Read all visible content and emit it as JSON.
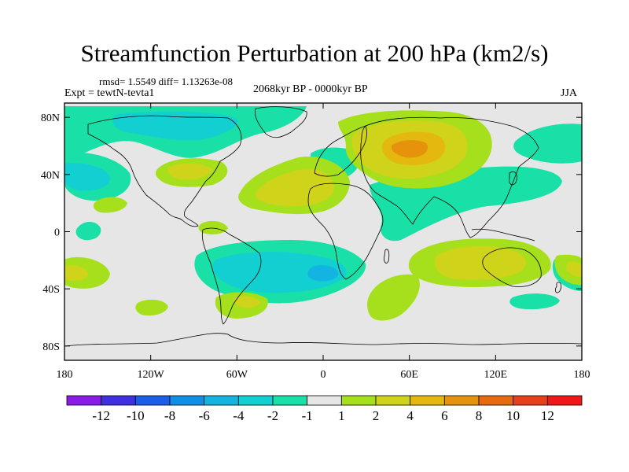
{
  "title": "Streamfunction Perturbation at 200 hPa (km2/s)",
  "stats": "rmsd= 1.5549 diff= 1.13263e-08",
  "experiment": "Expt = tewtN-tevta1",
  "period": "2068kyr BP - 0000kyr BP",
  "season": "JJA",
  "axes": {
    "lat_labels": [
      "80N",
      "40N",
      "0",
      "40S",
      "80S"
    ],
    "lat_values": [
      80,
      40,
      0,
      -40,
      -80
    ],
    "lon_labels": [
      "180",
      "120W",
      "60W",
      "0",
      "60E",
      "120E",
      "180"
    ],
    "lon_values": [
      -180,
      -120,
      -60,
      0,
      60,
      120,
      180
    ],
    "lon_range": [
      -180,
      180
    ],
    "lat_range": [
      -90,
      90
    ]
  },
  "colorbar": {
    "labels": [
      "-12",
      "-10",
      "-8",
      "-6",
      "-4",
      "-2",
      "-1",
      "1",
      "2",
      "4",
      "6",
      "8",
      "10",
      "12"
    ],
    "colors": [
      "#8a1ae8",
      "#3f2fe0",
      "#1a5ee8",
      "#0f8fe6",
      "#13b4e2",
      "#12cfd2",
      "#18e0a6",
      "#e6e6e6",
      "#a6e01c",
      "#cfd31a",
      "#e4b80e",
      "#e6920c",
      "#e86a0e",
      "#e6401a",
      "#ee1818"
    ]
  },
  "chart_data": {
    "type": "contour-map",
    "variable": "Streamfunction Perturbation at 200 hPa",
    "units": "km2/s",
    "levels": [
      -12,
      -10,
      -8,
      -6,
      -4,
      -2,
      -1,
      1,
      2,
      4,
      6,
      8,
      10,
      12
    ],
    "features": [
      {
        "lon": -110,
        "lat": 70,
        "value": -3
      },
      {
        "lon": -30,
        "lat": 70,
        "value": -2
      },
      {
        "lon": 5,
        "lat": 45,
        "value": -2
      },
      {
        "lon": -155,
        "lat": 40,
        "value": -3
      },
      {
        "lon": 140,
        "lat": 55,
        "value": -2
      },
      {
        "lon": -78,
        "lat": 42,
        "value": 3
      },
      {
        "lon": -20,
        "lat": 30,
        "value": 4
      },
      {
        "lon": 55,
        "lat": 60,
        "value": 6
      },
      {
        "lon": 90,
        "lat": 30,
        "value": -2
      },
      {
        "lon": -170,
        "lat": -28,
        "value": 3
      },
      {
        "lon": -30,
        "lat": -30,
        "value": -4
      },
      {
        "lon": -75,
        "lat": -50,
        "value": 3
      },
      {
        "lon": 40,
        "lat": -45,
        "value": 2
      },
      {
        "lon": 80,
        "lat": -25,
        "value": 3
      },
      {
        "lon": 130,
        "lat": -45,
        "value": -2
      },
      {
        "lon": 175,
        "lat": -28,
        "value": 3
      },
      {
        "lon": -160,
        "lat": 5,
        "value": -2
      }
    ]
  }
}
